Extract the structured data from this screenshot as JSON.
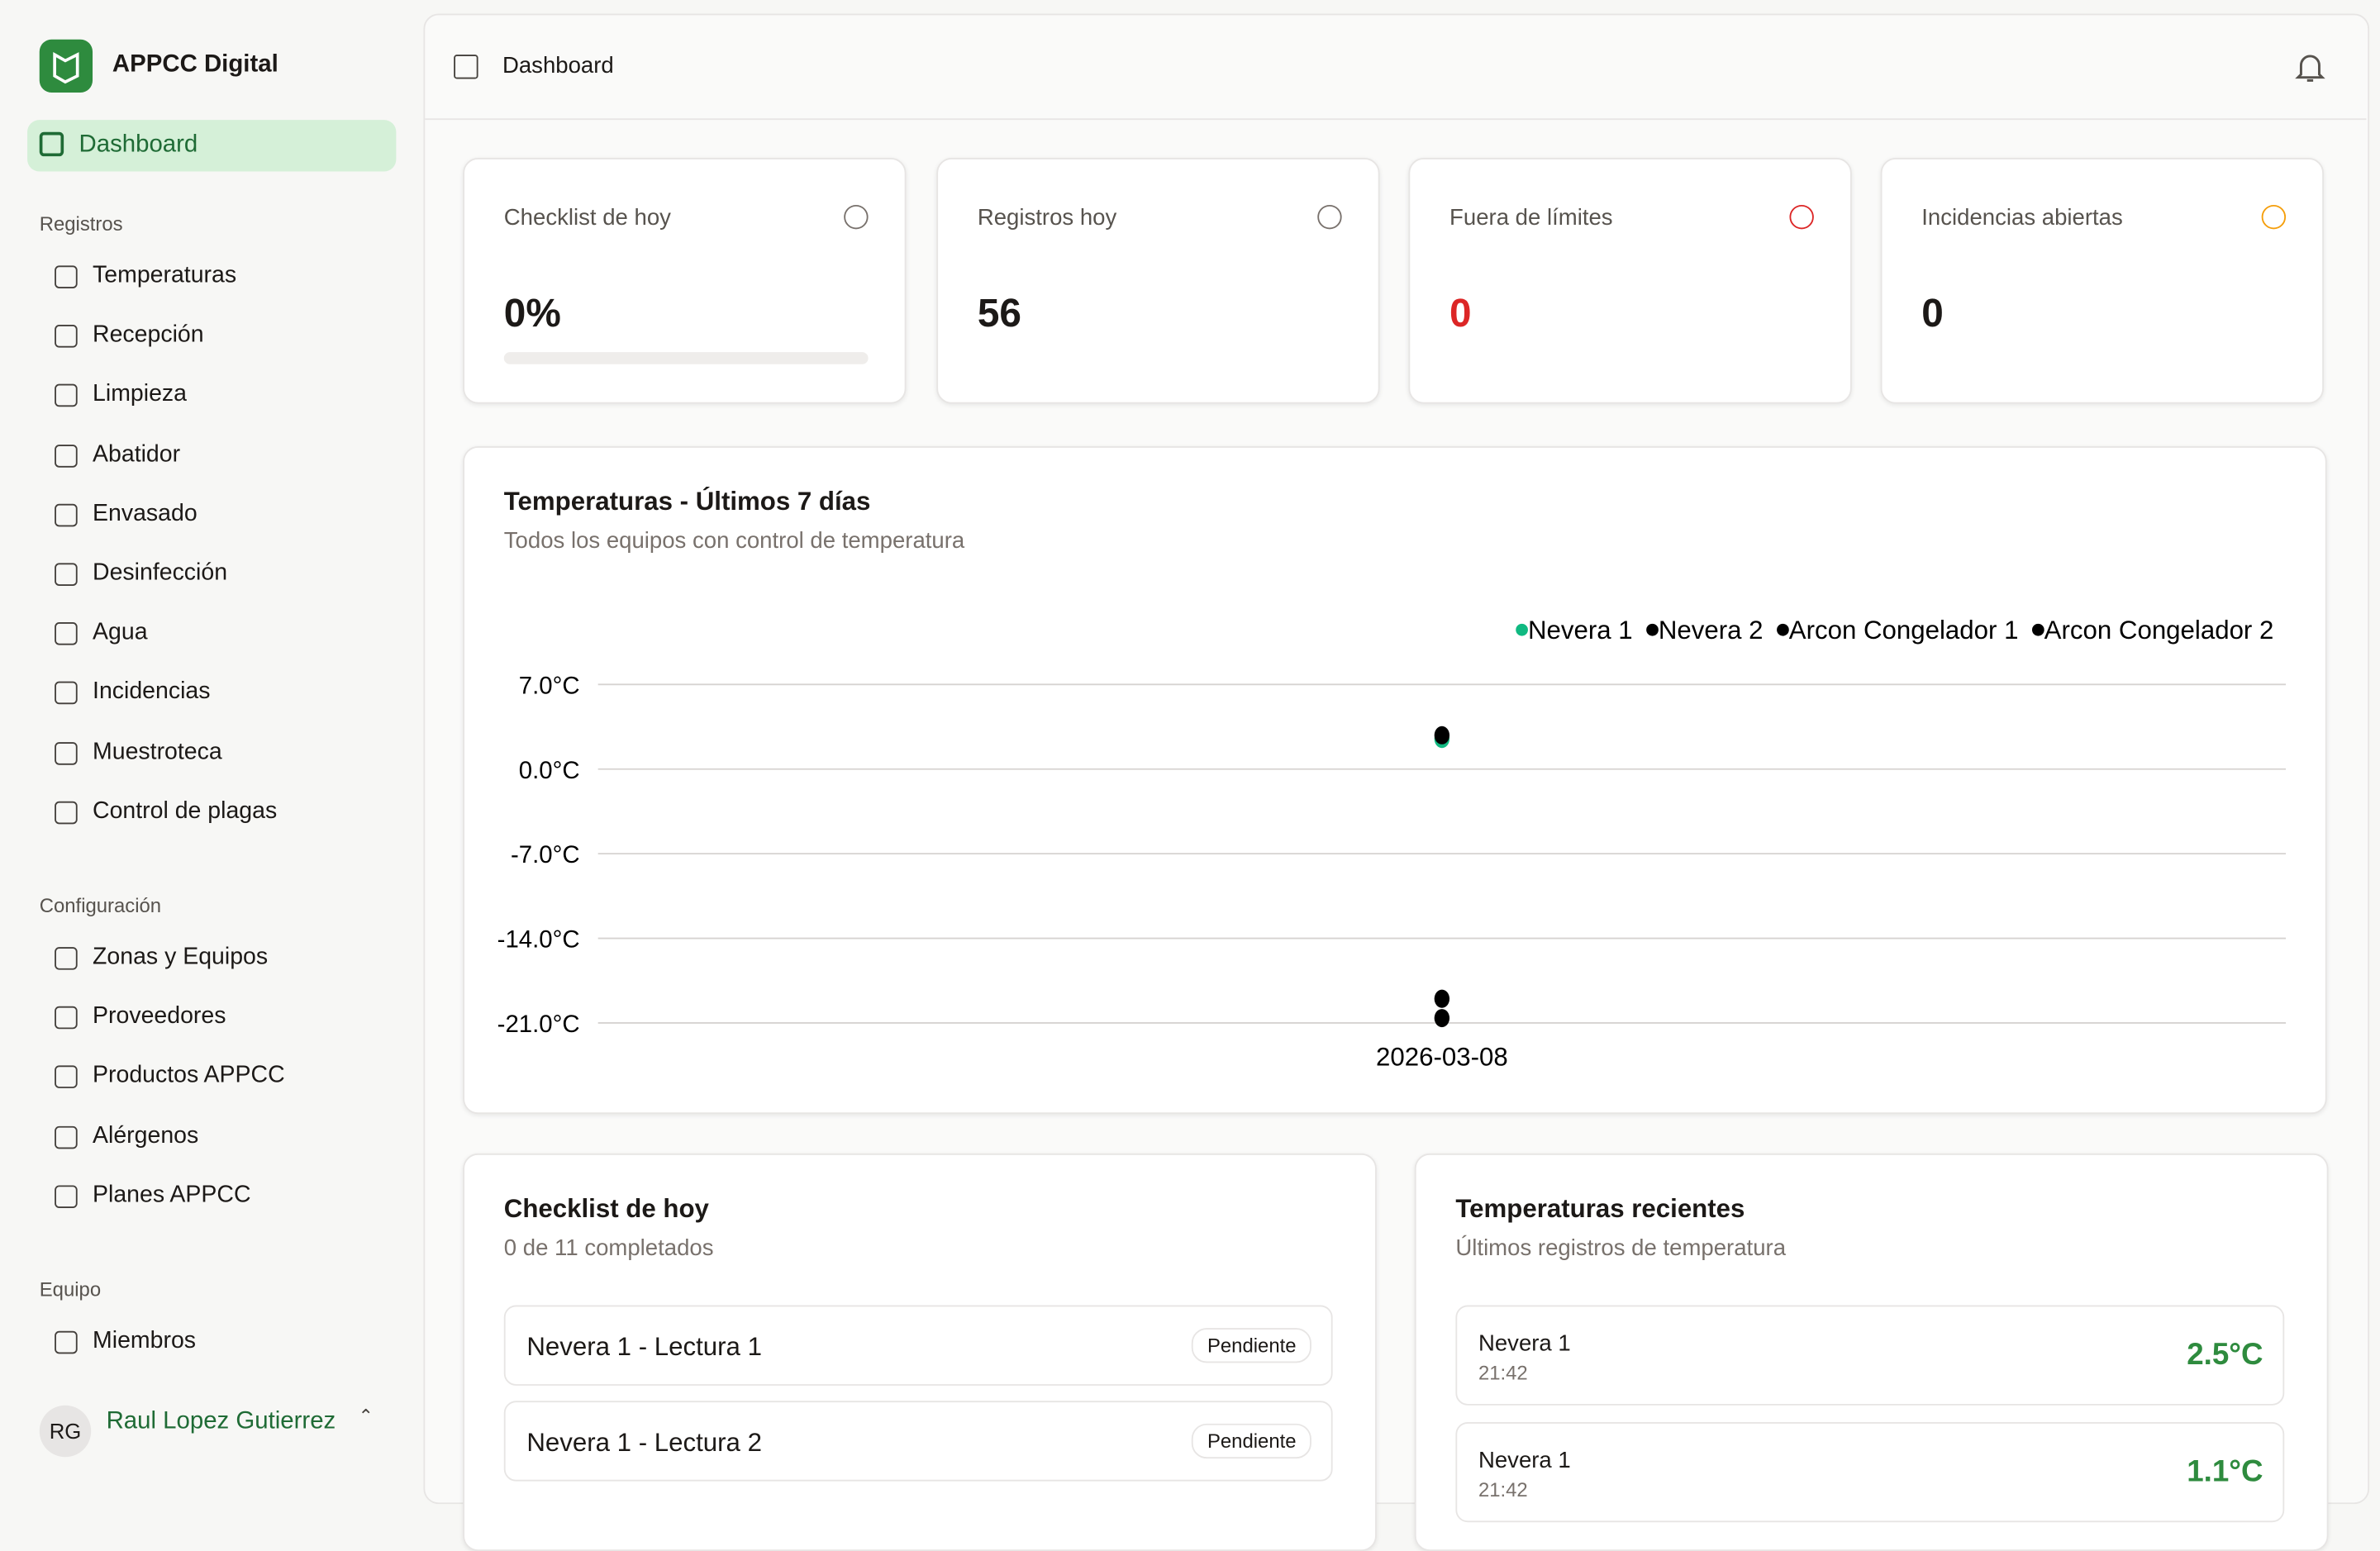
{
  "sidebar": {
    "app_name": "APPCC Digital",
    "active": "Dashboard",
    "groups": [
      {
        "title": "Registros",
        "items": [
          "Temperaturas",
          "Recepción",
          "Limpieza",
          "Abatidor",
          "Envasado",
          "Desinfección",
          "Agua",
          "Incidencias",
          "Muestroteca",
          "Control de plagas"
        ]
      },
      {
        "title": "Configuración",
        "items": [
          "Zonas y Equipos",
          "Proveedores",
          "Productos APPCC",
          "Alérgenos",
          "Planes APPCC"
        ]
      },
      {
        "title": "Equipo",
        "items": [
          "Miembros"
        ]
      }
    ],
    "user": {
      "initials": "RG",
      "name": "Raul Lopez Gutierrez"
    }
  },
  "header": {
    "title": "Dashboard"
  },
  "stats": [
    {
      "label": "Checklist de hoy",
      "value": "0%"
    },
    {
      "label": "Registros hoy",
      "value": "56"
    },
    {
      "label": "Fuera de límites",
      "value": "0"
    },
    {
      "label": "Incidencias abiertas",
      "value": "0"
    }
  ],
  "chart_data": {
    "type": "scatter",
    "title": "Temperaturas - Últimos 7 días",
    "subtitle": "Todos los equipos con control de temperatura",
    "categories": [
      "2026-03-08"
    ],
    "series": [
      {
        "name": "Nevera 1",
        "color": "#10b981",
        "values": [
          2.5
        ]
      },
      {
        "name": "Nevera 2",
        "color": "#000000",
        "values": [
          2.8
        ]
      },
      {
        "name": "Arcon Congelador 1",
        "color": "#000000",
        "values": [
          -19
        ]
      },
      {
        "name": "Arcon Congelador 2",
        "color": "#000000",
        "values": [
          -20.6
        ]
      }
    ],
    "ylim": [
      -21,
      7
    ],
    "yticks": [
      {
        "value": 7,
        "label": "7.0°C"
      },
      {
        "value": 0,
        "label": "0.0°C"
      },
      {
        "value": -7,
        "label": "-7.0°C"
      },
      {
        "value": -14,
        "label": "-14.0°C"
      },
      {
        "value": -21,
        "label": "-21.0°C"
      }
    ],
    "grid": true
  },
  "checklist": {
    "title": "Checklist de hoy",
    "subtitle": "0 de 11 completados",
    "items": [
      {
        "label": "Nevera 1 - Lectura 1",
        "status": "Pendiente"
      },
      {
        "label": "Nevera 1 - Lectura 2",
        "status": "Pendiente"
      }
    ]
  },
  "recent": {
    "title": "Temperaturas recientes",
    "subtitle": "Últimos registros de temperatura",
    "items": [
      {
        "name": "Nevera 1",
        "time": "21:42",
        "value": "2.5°C"
      },
      {
        "name": "Nevera 1",
        "time": "21:42",
        "value": "1.1°C"
      }
    ]
  }
}
